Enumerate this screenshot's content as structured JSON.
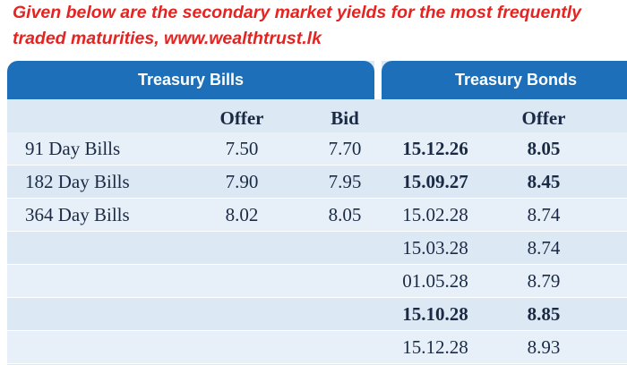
{
  "caption": {
    "line1": "Given below are the secondary market yields for the most frequently",
    "line2": "traded maturities, www.wealthtrust.lk"
  },
  "headers": {
    "bills": "Treasury Bills",
    "bonds": "Treasury Bonds"
  },
  "columns": {
    "bills_offer": "Offer",
    "bills_bid": "Bid",
    "bonds_offer": "Offer"
  },
  "rows": [
    {
      "bill": "91 Day Bills",
      "offer": "7.50",
      "bid": "7.70",
      "maturity": "15.12.26",
      "bond_offer": "8.05",
      "bold": true
    },
    {
      "bill": "182 Day Bills",
      "offer": "7.90",
      "bid": "7.95",
      "maturity": "15.09.27",
      "bond_offer": "8.45",
      "bold": true
    },
    {
      "bill": "364 Day Bills",
      "offer": "8.02",
      "bid": "8.05",
      "maturity": "15.02.28",
      "bond_offer": "8.74",
      "bold": false
    },
    {
      "bill": "",
      "offer": "",
      "bid": "",
      "maturity": "15.03.28",
      "bond_offer": "8.74",
      "bold": false
    },
    {
      "bill": "",
      "offer": "",
      "bid": "",
      "maturity": "01.05.28",
      "bond_offer": "8.79",
      "bold": false
    },
    {
      "bill": "",
      "offer": "",
      "bid": "",
      "maturity": "15.10.28",
      "bond_offer": "8.85",
      "bold": true
    },
    {
      "bill": "",
      "offer": "",
      "bid": "",
      "maturity": "15.12.28",
      "bond_offer": "8.93",
      "bold": false
    }
  ],
  "colors": {
    "caption": "#e52421",
    "header_bg": "#1d6fb9",
    "panel_bg": "#dce9f5"
  }
}
